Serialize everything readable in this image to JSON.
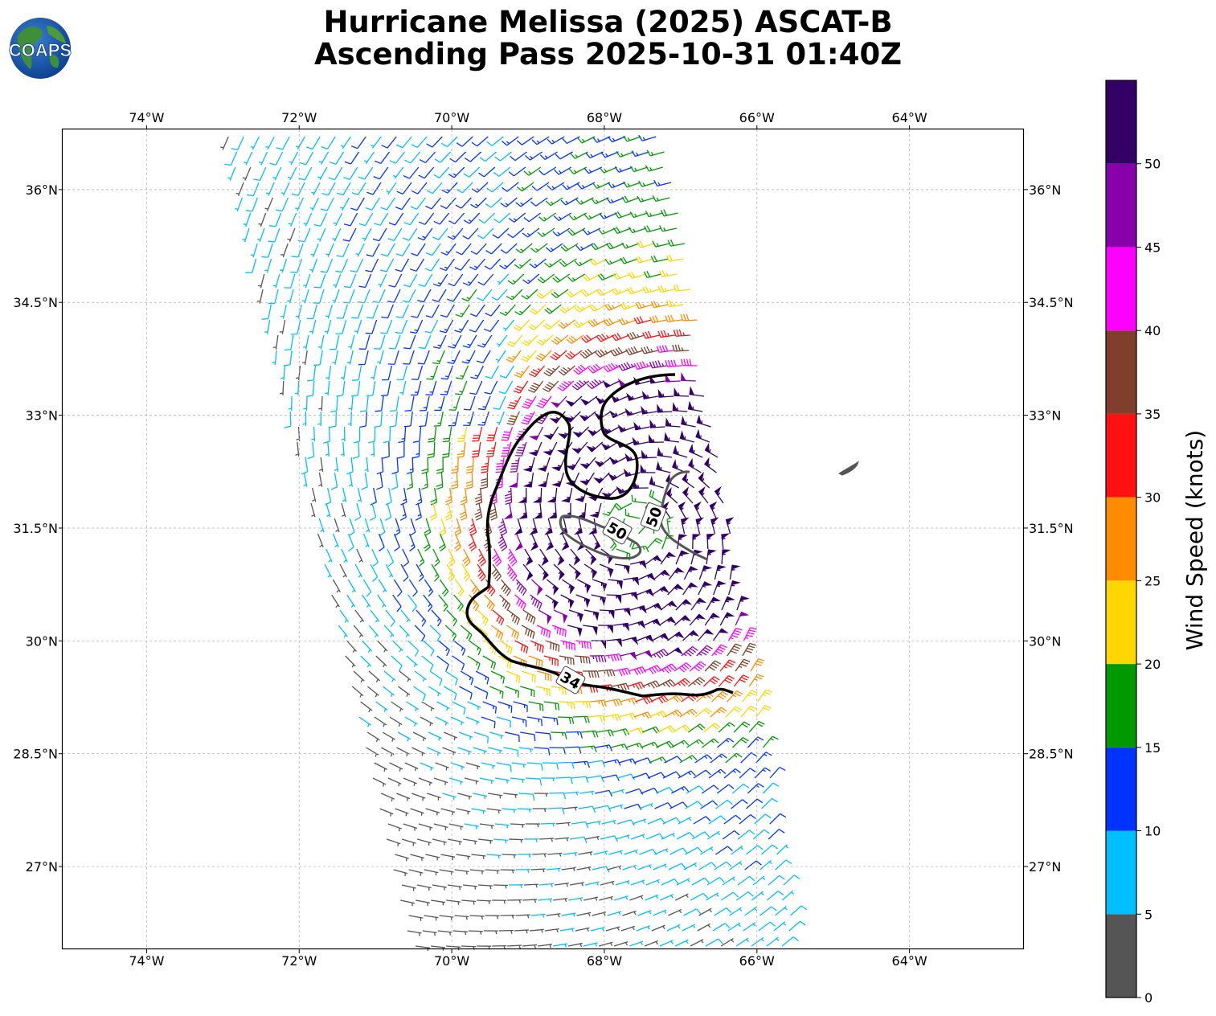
{
  "title": {
    "line1": "Hurricane Melissa (2025) ASCAT-B",
    "line2": "Ascending Pass 2025-10-31 01:40Z"
  },
  "logo": {
    "text": "COAPS",
    "icon": "globe-logo"
  },
  "map": {
    "lon_range": [
      -75.1,
      -62.5
    ],
    "lat_range": [
      25.9,
      36.8
    ],
    "lon_ticks": [
      "74°W",
      "72°W",
      "70°W",
      "68°W",
      "66°W",
      "64°W"
    ],
    "lat_ticks": [
      "36°N",
      "34.5°N",
      "33°N",
      "31.5°N",
      "30°N",
      "28.5°N",
      "27°N"
    ],
    "grid": true,
    "land_feature": "Bermuda"
  },
  "wind_radii": [
    {
      "label": "34",
      "color": "#000000"
    },
    {
      "label": "50",
      "color": "#555555"
    },
    {
      "label": "50",
      "color": "#555555"
    }
  ],
  "colorbar": {
    "label": "Wind Speed (knots)",
    "ticks": [
      "0",
      "5",
      "10",
      "15",
      "20",
      "25",
      "30",
      "35",
      "40",
      "45",
      "50"
    ],
    "bins": [
      {
        "min": 0,
        "max": 5,
        "color": "#555555"
      },
      {
        "min": 5,
        "max": 10,
        "color": "#00bfff"
      },
      {
        "min": 10,
        "max": 15,
        "color": "#0033ff"
      },
      {
        "min": 15,
        "max": 20,
        "color": "#009900"
      },
      {
        "min": 20,
        "max": 25,
        "color": "#ffd700"
      },
      {
        "min": 25,
        "max": 30,
        "color": "#ff8c00"
      },
      {
        "min": 30,
        "max": 35,
        "color": "#ff1111"
      },
      {
        "min": 35,
        "max": 40,
        "color": "#7f3f2a"
      },
      {
        "min": 40,
        "max": 45,
        "color": "#ff00ff"
      },
      {
        "min": 45,
        "max": 50,
        "color": "#8800aa"
      },
      {
        "min": 50,
        "max": 55,
        "color": "#330066"
      }
    ]
  }
}
